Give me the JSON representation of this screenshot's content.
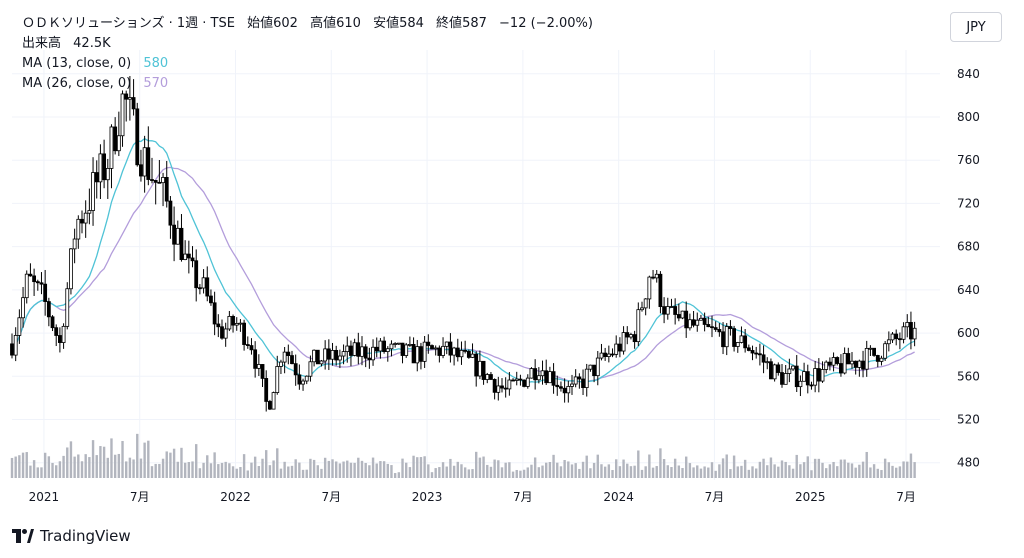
{
  "header": {
    "title": "ＯＤＫソリューションズ · 1週 · TSE",
    "open_label": "始値",
    "open": "602",
    "high_label": "高値",
    "high": "610",
    "low_label": "安値",
    "low": "584",
    "close_label": "終値",
    "close": "587",
    "change": "−12 (−2.00%)"
  },
  "legend": {
    "volume_label": "出来高",
    "volume_value": "42.5K",
    "ma13_label": "MA (13, close, 0)",
    "ma13_value": "580",
    "ma26_label": "MA (26, close, 0)",
    "ma26_value": "570"
  },
  "currency_button": "JPY",
  "brand": "TradingView",
  "colors": {
    "ma13": "#4fc3d6",
    "ma26": "#b39ddb",
    "volume": "#b2b5be",
    "candle_down": "#000000",
    "candle_up": "#ffffff"
  },
  "chart_data": {
    "type": "candlestick",
    "timeframe": "1週",
    "y_ticks": [
      840,
      800,
      760,
      720,
      680,
      640,
      600,
      560,
      520,
      480
    ],
    "x_ticks": [
      "2021",
      "7月",
      "2022",
      "7月",
      "2023",
      "7月",
      "2024",
      "7月",
      "2025",
      "7月"
    ],
    "ylim": [
      464,
      862
    ],
    "price_path": [
      [
        "2020-11",
        590
      ],
      [
        "2020-12",
        650
      ],
      [
        "2021-01",
        630
      ],
      [
        "2021-02",
        590
      ],
      [
        "2021-03",
        700
      ],
      [
        "2021-04",
        730
      ],
      [
        "2021-05",
        760
      ],
      [
        "2021-06",
        820
      ],
      [
        "2021-07",
        770
      ],
      [
        "2021-08",
        740
      ],
      [
        "2021-09",
        710
      ],
      [
        "2021-10",
        660
      ],
      [
        "2021-11",
        640
      ],
      [
        "2021-12",
        600
      ],
      [
        "2022-01",
        610
      ],
      [
        "2022-02",
        590
      ],
      [
        "2022-03",
        530
      ],
      [
        "2022-04",
        590
      ],
      [
        "2022-05",
        560
      ],
      [
        "2022-06",
        575
      ],
      [
        "2022-08",
        580
      ],
      [
        "2022-10",
        585
      ],
      [
        "2022-12",
        580
      ],
      [
        "2023-02",
        585
      ],
      [
        "2023-04",
        570
      ],
      [
        "2023-06",
        545
      ],
      [
        "2023-08",
        570
      ],
      [
        "2023-10",
        545
      ],
      [
        "2023-12",
        575
      ],
      [
        "2024-02",
        600
      ],
      [
        "2024-03",
        660
      ],
      [
        "2024-04",
        620
      ],
      [
        "2024-05",
        610
      ],
      [
        "2024-07",
        600
      ],
      [
        "2024-09",
        590
      ],
      [
        "2024-11",
        560
      ],
      [
        "2025-01",
        560
      ],
      [
        "2025-03",
        570
      ],
      [
        "2025-05",
        580
      ],
      [
        "2025-07",
        600
      ]
    ],
    "ma13_last": 580,
    "ma26_last": 570
  }
}
